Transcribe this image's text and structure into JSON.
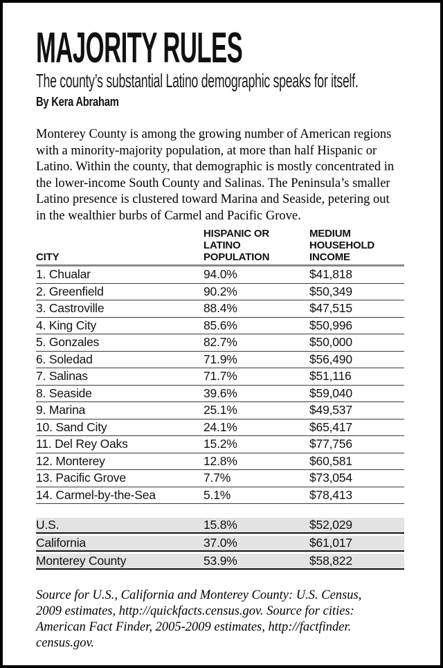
{
  "colors": {
    "page-border": "#000000",
    "text": "#111111",
    "rule-row": "#3a3a3a",
    "rule-header": "#888888",
    "rule-summary": "#111111",
    "summary-band": "#e3e3e3"
  },
  "article": {
    "title": "MAJORITY RULES",
    "subtitle": "The county’s substantial Latino demographic speaks for itself.",
    "byline": "By Kera Abraham",
    "intro_lines": [
      "Monterey County is among the growing number of American regions",
      "with a minority-majority population, at more than half Hispanic or",
      "Latino. Within the county, that demographic is mostly concentrated in",
      "the lower-income South County and Salinas. The Peninsula’s smaller",
      "Latino presence is clustered toward Marina and Seaside, petering out",
      "in the wealthier burbs of Carmel and Pacific Grove."
    ],
    "source_lines": [
      "Source for U.S., California and Monterey County: U.S. Census,",
      "2009 estimates, http://quickfacts.census.gov. Source for cities:",
      "American Fact Finder, 2005-2009 estimates, http://factfinder.",
      "census.gov."
    ]
  },
  "table": {
    "headers": [
      "CITY",
      "HISPANIC OR LATINO POPULATION",
      "MEDIUM HOUSEHOLD INCOME"
    ],
    "rows": [
      [
        "1. Chualar",
        "94.0%",
        "$41,818"
      ],
      [
        "2. Greenfield",
        "90.2%",
        "$50,349"
      ],
      [
        "3. Castroville",
        "88.4%",
        "$47,515"
      ],
      [
        "4. King City",
        "85.6%",
        "$50,996"
      ],
      [
        "5. Gonzales",
        "82.7%",
        "$50,000"
      ],
      [
        "6. Soledad",
        "71.9%",
        "$56,490"
      ],
      [
        "7. Salinas",
        "71.7%",
        "$51,116"
      ],
      [
        "8. Seaside",
        "39.6%",
        "$59,040"
      ],
      [
        "9. Marina",
        "25.1%",
        "$49,537"
      ],
      [
        "10. Sand City",
        "24.1%",
        "$65,417"
      ],
      [
        "11. Del Rey Oaks",
        "15.2%",
        "$77,756"
      ],
      [
        "12. Monterey",
        "12.8%",
        "$60,581"
      ],
      [
        "13. Pacific Grove",
        "7.7%",
        "$73,054"
      ],
      [
        "14. Carmel-by-the-Sea",
        "5.1%",
        "$78,413"
      ]
    ],
    "summary_rows": [
      [
        "U.S.",
        "15.8%",
        "$52,029"
      ],
      [
        "California",
        "37.0%",
        "$61,017"
      ],
      [
        "Monterey County",
        "53.9%",
        "$58,822"
      ]
    ]
  }
}
